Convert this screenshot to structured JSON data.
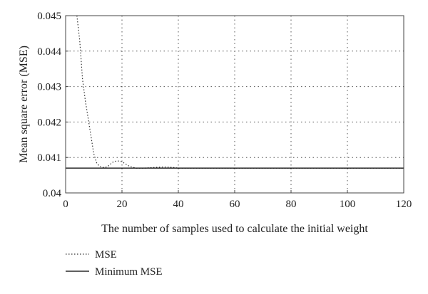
{
  "chart_data": {
    "type": "line",
    "xlabel": "The number of samples used to calculate the initial weight",
    "ylabel": "Mean square error (MSE)",
    "xlim": [
      0,
      120
    ],
    "ylim": [
      0.04,
      0.045
    ],
    "x_ticks": [
      0,
      20,
      40,
      60,
      80,
      100,
      120
    ],
    "y_ticks": [
      0.04,
      0.041,
      0.042,
      0.043,
      0.044,
      0.045
    ],
    "x_tick_labels": [
      "0",
      "20",
      "40",
      "60",
      "80",
      "100",
      "120"
    ],
    "y_tick_labels": [
      "0.04",
      "0.041",
      "0.042",
      "0.043",
      "0.044",
      "0.045"
    ],
    "grid": true,
    "legend_position": "below-left",
    "series": [
      {
        "name": "MSE",
        "style": "dotted",
        "color": "#333333",
        "x": [
          4,
          5,
          6,
          7,
          8,
          9,
          10,
          11,
          12,
          13,
          14,
          15,
          16,
          17,
          18,
          19,
          20,
          21,
          22,
          23,
          24,
          25,
          26,
          28,
          30,
          32,
          34,
          36,
          38,
          40,
          50,
          60,
          80,
          100,
          120
        ],
        "y": [
          0.045,
          0.0443,
          0.0432,
          0.0426,
          0.0421,
          0.0416,
          0.0411,
          0.04085,
          0.04075,
          0.04072,
          0.04072,
          0.04075,
          0.04082,
          0.04088,
          0.0409,
          0.0409,
          0.04088,
          0.04083,
          0.04078,
          0.04074,
          0.04072,
          0.0407,
          0.0407,
          0.0407,
          0.04071,
          0.04072,
          0.04073,
          0.04073,
          0.04072,
          0.0407,
          0.0407,
          0.0407,
          0.0407,
          0.0407,
          0.0407
        ]
      },
      {
        "name": "Minimum MSE",
        "style": "solid",
        "color": "#000000",
        "x": [
          0,
          120
        ],
        "y": [
          0.0407,
          0.0407
        ]
      }
    ]
  }
}
